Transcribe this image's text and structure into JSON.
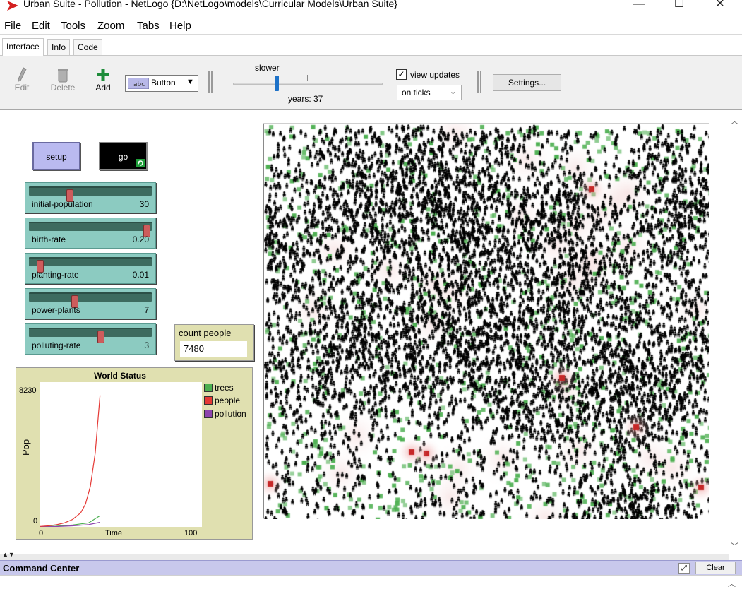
{
  "window": {
    "title": "Urban Suite - Pollution - NetLogo {D:\\NetLogo\\models\\Curricular Models\\Urban Suite}",
    "minimize": "—",
    "maximize": "☐",
    "close": "✕"
  },
  "menu": [
    "File",
    "Edit",
    "Tools",
    "Zoom",
    "Tabs",
    "Help"
  ],
  "tabs": [
    "Interface",
    "Info",
    "Code"
  ],
  "active_tab": "Interface",
  "toolbar": {
    "edit": "Edit",
    "delete": "Delete",
    "add": "Add",
    "widget_type": "Button",
    "speed_label": "slower",
    "ticks_readout": "years: 37",
    "view_updates_label": "view updates",
    "view_updates_checked": true,
    "update_mode": "on ticks",
    "settings": "Settings..."
  },
  "buttons": {
    "setup": "setup",
    "go": "go"
  },
  "sliders": [
    {
      "name": "initial-population",
      "value": "30",
      "fraction": 0.33
    },
    {
      "name": "birth-rate",
      "value": "0.20",
      "fraction": 1.0
    },
    {
      "name": "planting-rate",
      "value": "0.01",
      "fraction": 0.07
    },
    {
      "name": "power-plants",
      "value": "7",
      "fraction": 0.37
    },
    {
      "name": "polluting-rate",
      "value": "3",
      "fraction": 0.6
    }
  ],
  "monitor": {
    "label": "count people",
    "value": "7480"
  },
  "plot": {
    "title": "World Status",
    "ylabel": "Pop",
    "xlabel": "Time",
    "ymax_label": "8230",
    "ymin_label": "0",
    "xmin_label": "0",
    "xmax_label": "100",
    "legend": [
      {
        "name": "trees",
        "color": "#4caf50"
      },
      {
        "name": "people",
        "color": "#e53935"
      },
      {
        "name": "pollution",
        "color": "#8e44ad"
      }
    ]
  },
  "chart_data": {
    "type": "line",
    "title": "World Status",
    "xlabel": "Time",
    "ylabel": "Pop",
    "xlim": [
      0,
      100
    ],
    "ylim": [
      0,
      8230
    ],
    "series": [
      {
        "name": "people",
        "x": [
          0,
          5,
          10,
          15,
          20,
          25,
          28,
          31,
          34,
          37
        ],
        "y": [
          30,
          60,
          120,
          230,
          420,
          800,
          1300,
          2300,
          4200,
          7480
        ]
      },
      {
        "name": "trees",
        "x": [
          0,
          10,
          20,
          30,
          37
        ],
        "y": [
          10,
          40,
          110,
          230,
          640
        ]
      },
      {
        "name": "pollution",
        "x": [
          0,
          10,
          20,
          30,
          37
        ],
        "y": [
          0,
          20,
          60,
          130,
          260
        ]
      }
    ]
  },
  "world": {
    "background": "#ffffff",
    "people_color": "#000000",
    "tree_color": "#4caf50",
    "power_plant_color": "#c62828"
  },
  "command_center": {
    "title": "Command Center",
    "clear": "Clear"
  }
}
